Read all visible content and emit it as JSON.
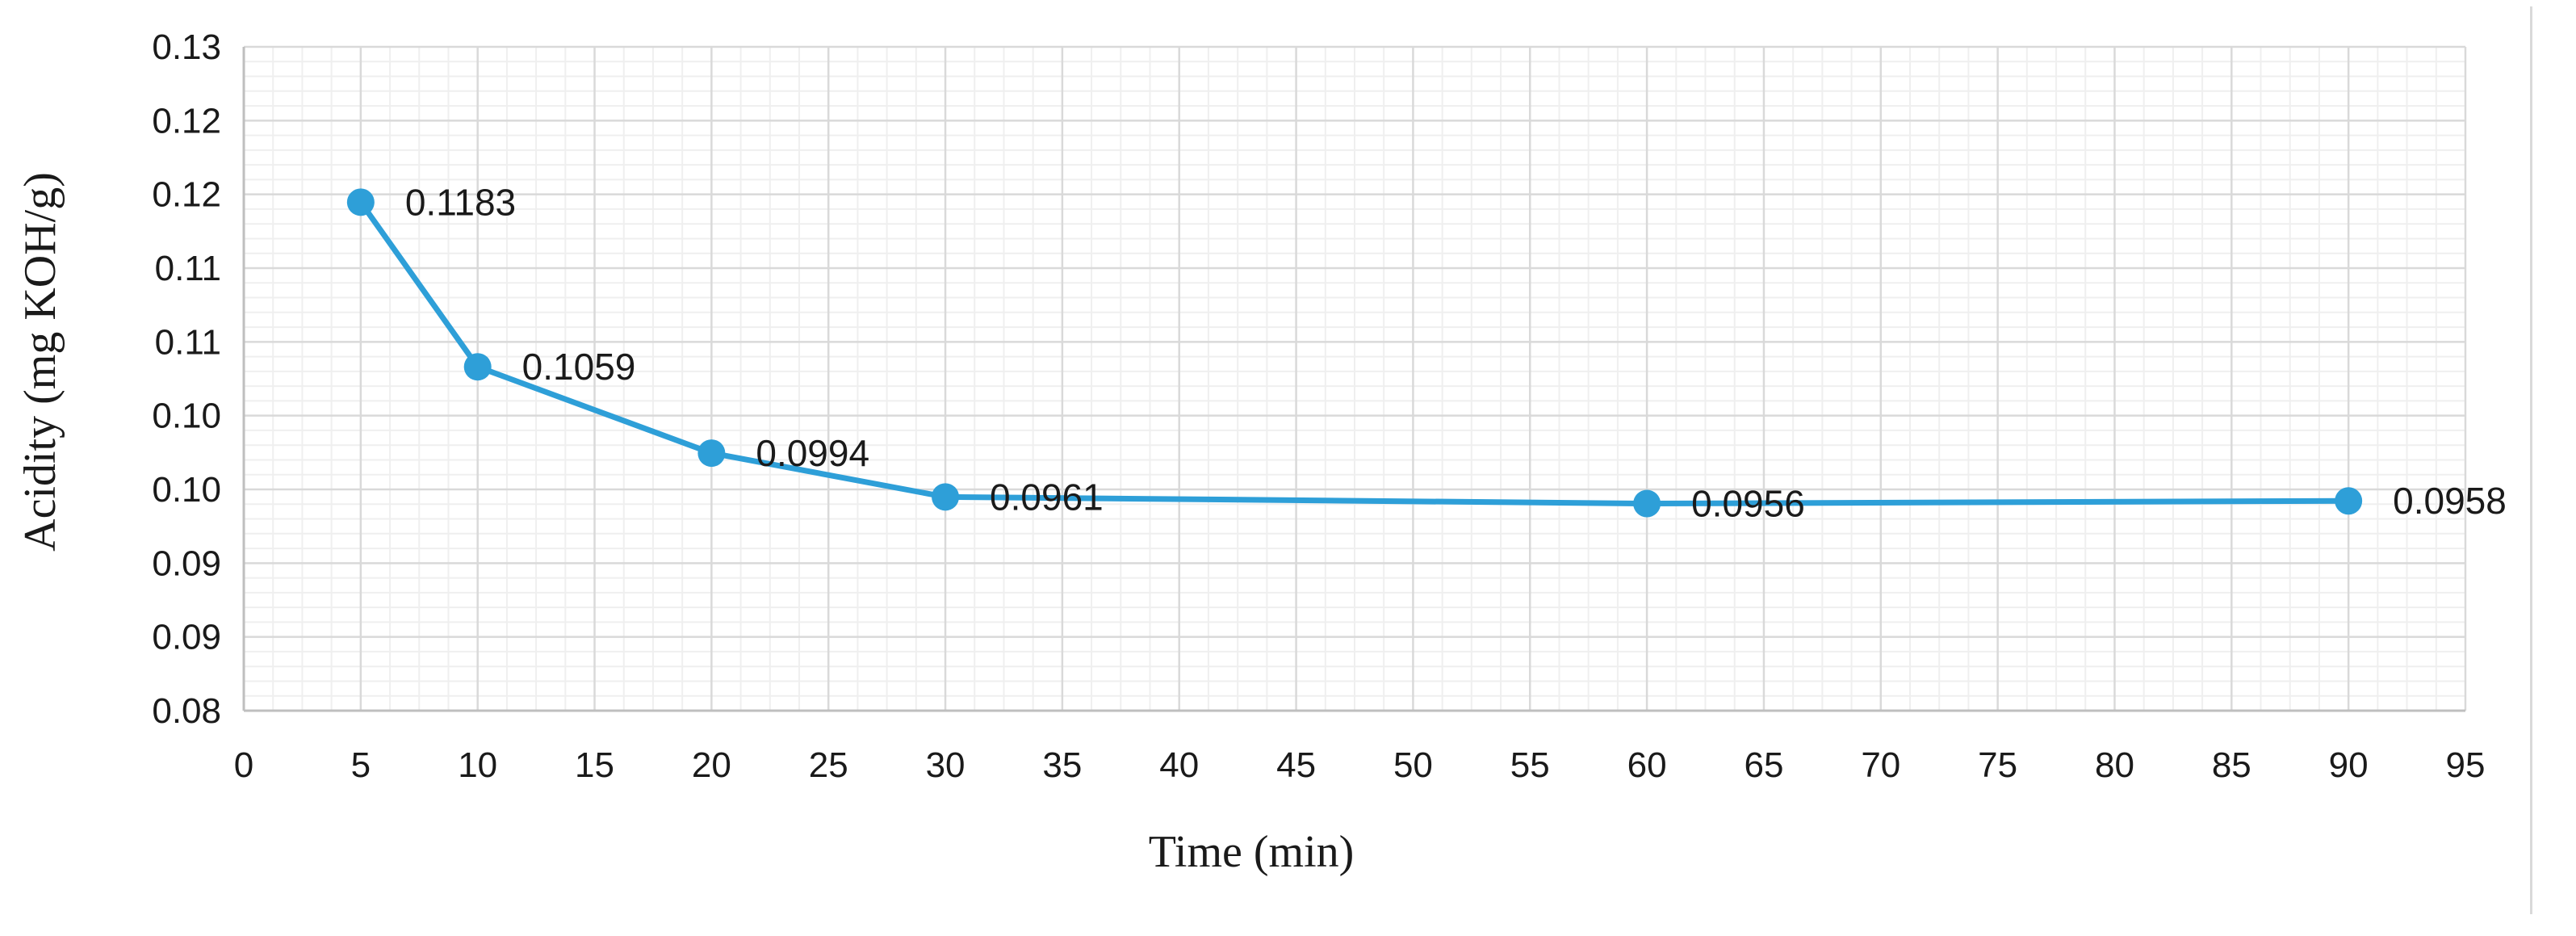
{
  "chart_data": {
    "type": "line",
    "title": "",
    "xlabel": "Time (min)",
    "ylabel": "Acidity (mg KOH/g)",
    "xlim": [
      0,
      95
    ],
    "ylim": [
      0.08,
      0.13
    ],
    "x_ticks": [
      "0",
      "5",
      "10",
      "15",
      "20",
      "25",
      "30",
      "35",
      "40",
      "45",
      "50",
      "55",
      "60",
      "65",
      "70",
      "75",
      "80",
      "85",
      "90",
      "95"
    ],
    "y_ticks": [
      "0.08",
      "0.09",
      "0.09",
      "0.10",
      "0.10",
      "0.11",
      "0.11",
      "0.12",
      "0.12",
      "0.13"
    ],
    "grid": true,
    "legend": "none",
    "series": [
      {
        "color": "#2E9FD8",
        "x": [
          5,
          10,
          20,
          30,
          60,
          90
        ],
        "y": [
          0.1183,
          0.1059,
          0.0994,
          0.0961,
          0.0956,
          0.0958
        ],
        "labels": [
          "0.1183",
          "0.1059",
          "0.0994",
          "0.0961",
          "0.0956",
          "0.0958"
        ]
      }
    ]
  }
}
